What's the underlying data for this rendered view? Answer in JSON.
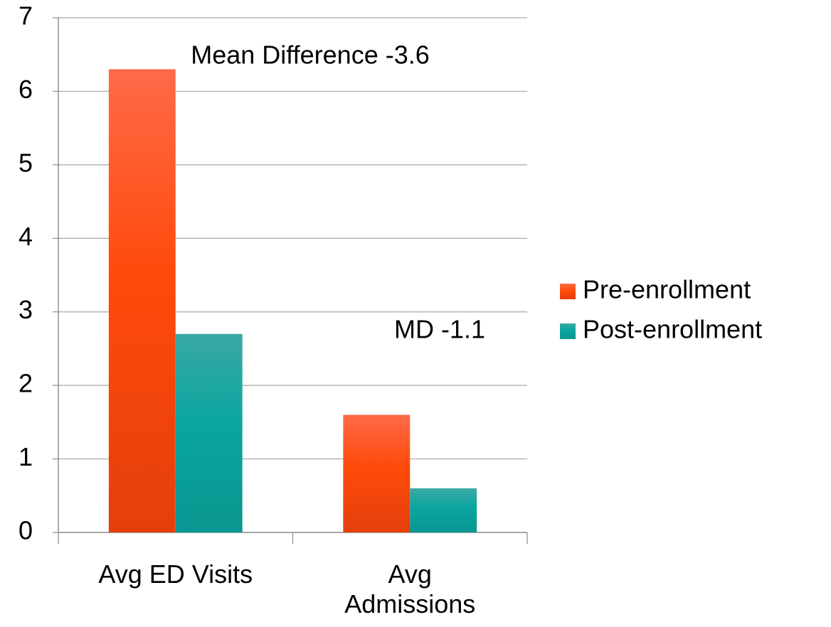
{
  "chart_data": {
    "type": "bar",
    "categories": [
      [
        "Avg ED Visits"
      ],
      [
        "Avg",
        "Admissions"
      ]
    ],
    "series": [
      {
        "name": "Pre-enrollment",
        "values": [
          6.3,
          1.6
        ],
        "color": "#f24a12"
      },
      {
        "name": "Post-enrollment",
        "values": [
          2.7,
          0.6
        ],
        "color": "#0e9e98"
      }
    ],
    "ylim": [
      0,
      7
    ],
    "yticks": [
      0,
      1,
      2,
      3,
      4,
      5,
      6,
      7
    ],
    "grid": true,
    "legend": "right",
    "annotations": [
      {
        "text": "Mean Difference -3.6",
        "category_index": 0
      },
      {
        "text": "MD -1.1",
        "category_index": 1
      }
    ],
    "title": "",
    "xlabel": "",
    "ylabel": ""
  }
}
